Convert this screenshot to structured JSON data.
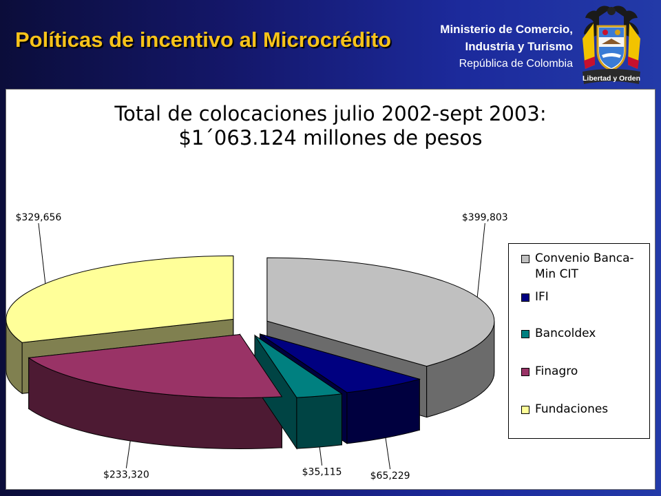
{
  "header": {
    "title": "Políticas de incentivo al Microcrédito",
    "ministry_line1": "Ministerio de Comercio,",
    "ministry_line2": "Industria y Turismo",
    "ministry_line3": "República de Colombia",
    "emblem_motto": "Libertad y Orden"
  },
  "colors": {
    "background": "#1c2a9c",
    "title": "#f7c31a"
  },
  "chart_data": {
    "type": "pie",
    "title_line1": "Total de colocaciones julio 2002-sept 2003:",
    "title_line2": "$1´063.124 millones de pesos",
    "legend_position": "right",
    "slices": [
      {
        "name": "Convenio Banca-Min CIT",
        "legend_line1": "Convenio Banca-",
        "legend_line2": "Min CIT",
        "value": 399803,
        "label": "$399,803",
        "color": "#c0c0c0",
        "side_color": "#6b6b6b"
      },
      {
        "name": "IFI",
        "legend_line1": "IFI",
        "legend_line2": "",
        "value": 65229,
        "label": "$65,229",
        "color": "#000080",
        "side_color": "#00003f"
      },
      {
        "name": "Bancoldex",
        "legend_line1": "Bancoldex",
        "legend_line2": "",
        "value": 35115,
        "label": "$35,115",
        "color": "#008080",
        "side_color": "#004444"
      },
      {
        "name": "Finagro",
        "legend_line1": "Finagro",
        "legend_line2": "",
        "value": 233320,
        "label": "$233,320",
        "color": "#993366",
        "side_color": "#4d1a33"
      },
      {
        "name": "Fundaciones",
        "legend_line1": "Fundaciones",
        "legend_line2": "",
        "value": 329656,
        "label": "$329,656",
        "color": "#ffff99",
        "side_color": "#808050"
      }
    ]
  }
}
